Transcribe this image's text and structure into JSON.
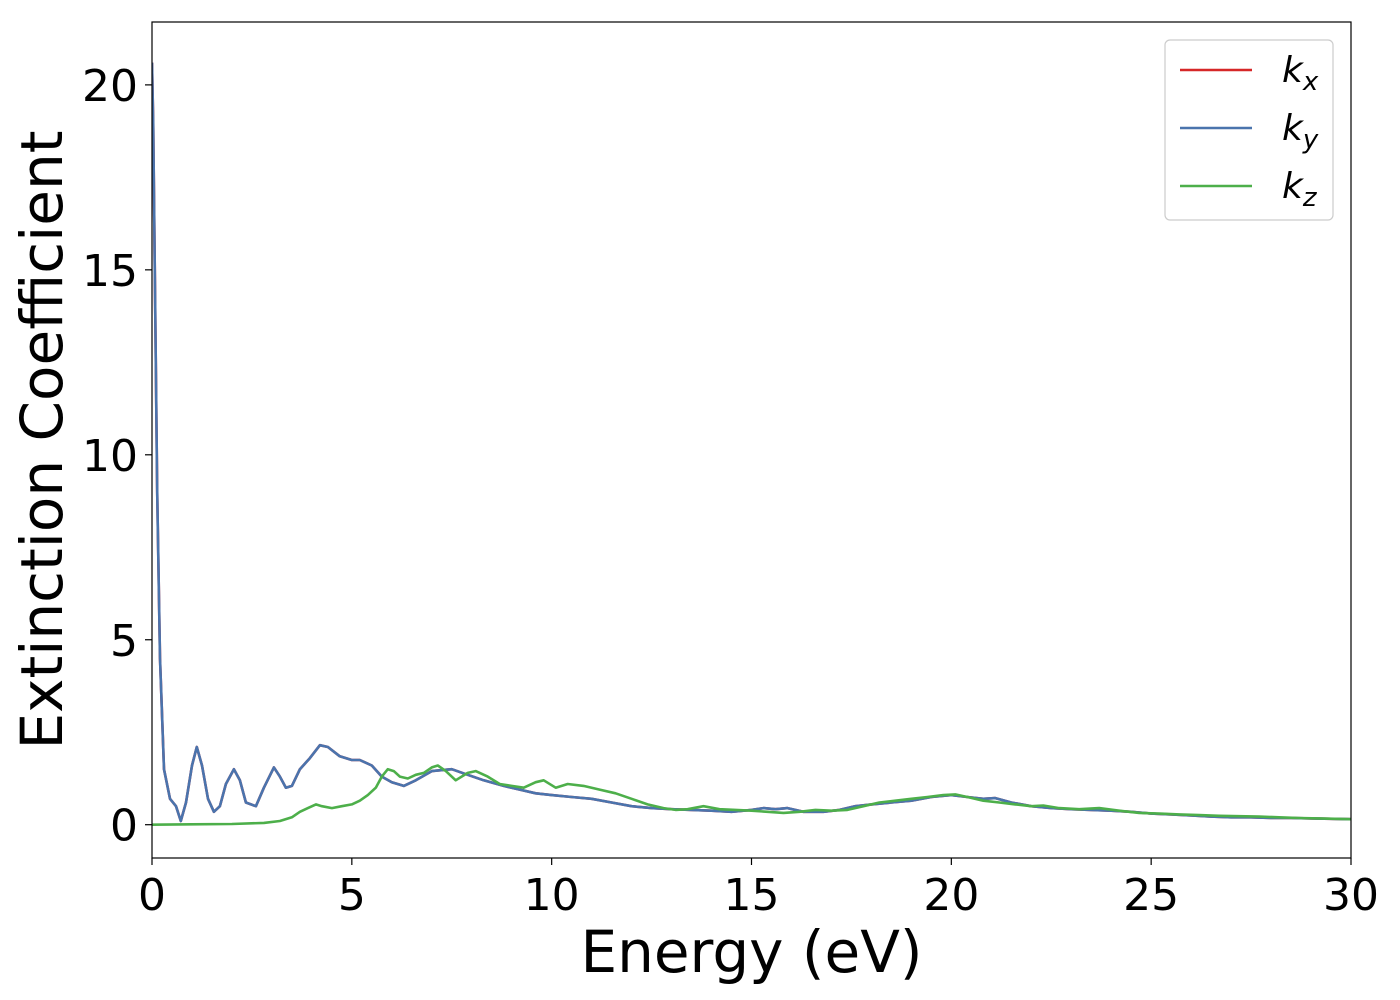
{
  "chart_data": {
    "type": "line",
    "xlabel": "Energy (eV)",
    "ylabel": "Extinction Coefficient",
    "xlim": [
      0,
      30
    ],
    "ylim": [
      -0.9,
      21.7
    ],
    "xticks": [
      0,
      5,
      10,
      15,
      20,
      25,
      30
    ],
    "xtick_labels": [
      "0",
      "5",
      "10",
      "15",
      "20",
      "25",
      "30"
    ],
    "yticks": [
      0,
      5,
      10,
      15,
      20
    ],
    "ytick_labels": [
      "0",
      "5",
      "10",
      "15",
      "20"
    ],
    "grid": false,
    "legend_position": "top-right",
    "series": [
      {
        "name": "k",
        "subscript": "x",
        "color": "#d62728",
        "x": [
          0,
          0.03,
          0.08,
          0.13,
          0.2,
          0.3,
          0.45,
          0.6,
          0.72,
          0.85,
          1.0,
          1.12,
          1.25,
          1.4,
          1.55,
          1.7,
          1.85,
          2.05,
          2.2,
          2.35,
          2.6,
          2.8,
          3.05,
          3.2,
          3.35,
          3.5,
          3.7,
          3.95,
          4.2,
          4.4,
          4.7,
          5.0,
          5.2,
          5.5,
          5.75,
          6.0,
          6.3,
          6.6,
          7.0,
          7.5,
          7.9,
          8.3,
          8.8,
          9.2,
          9.6,
          10.0,
          10.5,
          11.0,
          11.5,
          12.0,
          12.5,
          13.0,
          13.5,
          14.0,
          14.5,
          15.0,
          15.3,
          15.6,
          15.9,
          16.3,
          16.8,
          17.2,
          17.6,
          18.0,
          18.5,
          19.0,
          19.5,
          20.0,
          20.4,
          20.8,
          21.1,
          21.5,
          22.0,
          22.5,
          23.0,
          23.5,
          24.0,
          24.5,
          25.0,
          25.5,
          26.0,
          26.5,
          27.0,
          27.5,
          28.0,
          28.5,
          29.0,
          29.5,
          30.0
        ],
        "y": [
          20.6,
          19.0,
          14.0,
          9.0,
          4.5,
          1.5,
          0.7,
          0.5,
          0.1,
          0.6,
          1.6,
          2.1,
          1.6,
          0.7,
          0.35,
          0.5,
          1.1,
          1.5,
          1.2,
          0.6,
          0.5,
          1.0,
          1.55,
          1.3,
          1.0,
          1.05,
          1.5,
          1.8,
          2.15,
          2.1,
          1.85,
          1.75,
          1.75,
          1.6,
          1.3,
          1.15,
          1.05,
          1.2,
          1.45,
          1.5,
          1.35,
          1.2,
          1.05,
          0.95,
          0.85,
          0.8,
          0.75,
          0.7,
          0.6,
          0.5,
          0.45,
          0.42,
          0.4,
          0.38,
          0.35,
          0.4,
          0.45,
          0.42,
          0.45,
          0.35,
          0.35,
          0.4,
          0.5,
          0.55,
          0.6,
          0.65,
          0.75,
          0.8,
          0.75,
          0.7,
          0.72,
          0.6,
          0.5,
          0.45,
          0.42,
          0.4,
          0.38,
          0.35,
          0.3,
          0.28,
          0.25,
          0.22,
          0.2,
          0.2,
          0.18,
          0.18,
          0.17,
          0.16,
          0.15
        ]
      },
      {
        "name": "k",
        "subscript": "y",
        "color": "#4a74ad",
        "x": [
          0,
          0.03,
          0.08,
          0.13,
          0.2,
          0.3,
          0.45,
          0.6,
          0.72,
          0.85,
          1.0,
          1.12,
          1.25,
          1.4,
          1.55,
          1.7,
          1.85,
          2.05,
          2.2,
          2.35,
          2.6,
          2.8,
          3.05,
          3.2,
          3.35,
          3.5,
          3.7,
          3.95,
          4.2,
          4.4,
          4.7,
          5.0,
          5.2,
          5.5,
          5.75,
          6.0,
          6.3,
          6.6,
          7.0,
          7.5,
          7.9,
          8.3,
          8.8,
          9.2,
          9.6,
          10.0,
          10.5,
          11.0,
          11.5,
          12.0,
          12.5,
          13.0,
          13.5,
          14.0,
          14.5,
          15.0,
          15.3,
          15.6,
          15.9,
          16.3,
          16.8,
          17.2,
          17.6,
          18.0,
          18.5,
          19.0,
          19.5,
          20.0,
          20.4,
          20.8,
          21.1,
          21.5,
          22.0,
          22.5,
          23.0,
          23.5,
          24.0,
          24.5,
          25.0,
          25.5,
          26.0,
          26.5,
          27.0,
          27.5,
          28.0,
          28.5,
          29.0,
          29.5,
          30.0
        ],
        "y": [
          20.6,
          19.0,
          14.0,
          9.0,
          4.5,
          1.5,
          0.7,
          0.5,
          0.1,
          0.6,
          1.6,
          2.1,
          1.6,
          0.7,
          0.35,
          0.5,
          1.1,
          1.5,
          1.2,
          0.6,
          0.5,
          1.0,
          1.55,
          1.3,
          1.0,
          1.05,
          1.5,
          1.8,
          2.15,
          2.1,
          1.85,
          1.75,
          1.75,
          1.6,
          1.3,
          1.15,
          1.05,
          1.2,
          1.45,
          1.5,
          1.35,
          1.2,
          1.05,
          0.95,
          0.85,
          0.8,
          0.75,
          0.7,
          0.6,
          0.5,
          0.45,
          0.42,
          0.4,
          0.38,
          0.35,
          0.4,
          0.45,
          0.42,
          0.45,
          0.35,
          0.35,
          0.4,
          0.5,
          0.55,
          0.6,
          0.65,
          0.75,
          0.8,
          0.75,
          0.7,
          0.72,
          0.6,
          0.5,
          0.45,
          0.42,
          0.4,
          0.38,
          0.35,
          0.3,
          0.28,
          0.25,
          0.22,
          0.2,
          0.2,
          0.18,
          0.18,
          0.17,
          0.16,
          0.15
        ]
      },
      {
        "name": "k",
        "subscript": "z",
        "color": "#4daf4a",
        "x": [
          0,
          1.0,
          2.0,
          2.8,
          3.2,
          3.5,
          3.7,
          3.9,
          4.1,
          4.25,
          4.5,
          4.75,
          5.0,
          5.2,
          5.4,
          5.6,
          5.75,
          5.9,
          6.05,
          6.2,
          6.4,
          6.6,
          6.8,
          7.0,
          7.15,
          7.35,
          7.6,
          7.9,
          8.1,
          8.4,
          8.7,
          9.0,
          9.3,
          9.6,
          9.8,
          10.1,
          10.4,
          10.8,
          11.2,
          11.6,
          12.0,
          12.4,
          12.8,
          13.1,
          13.4,
          13.8,
          14.2,
          14.6,
          15.0,
          15.4,
          15.8,
          16.2,
          16.6,
          17.0,
          17.4,
          17.8,
          18.2,
          18.6,
          19.0,
          19.4,
          19.8,
          20.1,
          20.4,
          20.8,
          21.2,
          21.6,
          22.0,
          22.3,
          22.7,
          23.2,
          23.7,
          24.2,
          24.7,
          25.2,
          25.7,
          26.2,
          26.7,
          27.2,
          27.7,
          28.2,
          28.7,
          29.2,
          29.6,
          30.0
        ],
        "y": [
          0.0,
          0.01,
          0.02,
          0.05,
          0.1,
          0.2,
          0.35,
          0.45,
          0.55,
          0.5,
          0.45,
          0.5,
          0.55,
          0.65,
          0.8,
          1.0,
          1.3,
          1.5,
          1.45,
          1.3,
          1.25,
          1.35,
          1.4,
          1.55,
          1.6,
          1.45,
          1.2,
          1.4,
          1.45,
          1.3,
          1.1,
          1.05,
          1.0,
          1.15,
          1.2,
          1.0,
          1.1,
          1.05,
          0.95,
          0.85,
          0.7,
          0.55,
          0.45,
          0.4,
          0.42,
          0.5,
          0.42,
          0.4,
          0.38,
          0.35,
          0.32,
          0.35,
          0.4,
          0.38,
          0.4,
          0.5,
          0.6,
          0.65,
          0.7,
          0.75,
          0.8,
          0.82,
          0.75,
          0.65,
          0.6,
          0.55,
          0.5,
          0.52,
          0.45,
          0.42,
          0.45,
          0.38,
          0.32,
          0.3,
          0.28,
          0.26,
          0.24,
          0.23,
          0.22,
          0.2,
          0.18,
          0.17,
          0.16,
          0.15
        ]
      }
    ]
  }
}
